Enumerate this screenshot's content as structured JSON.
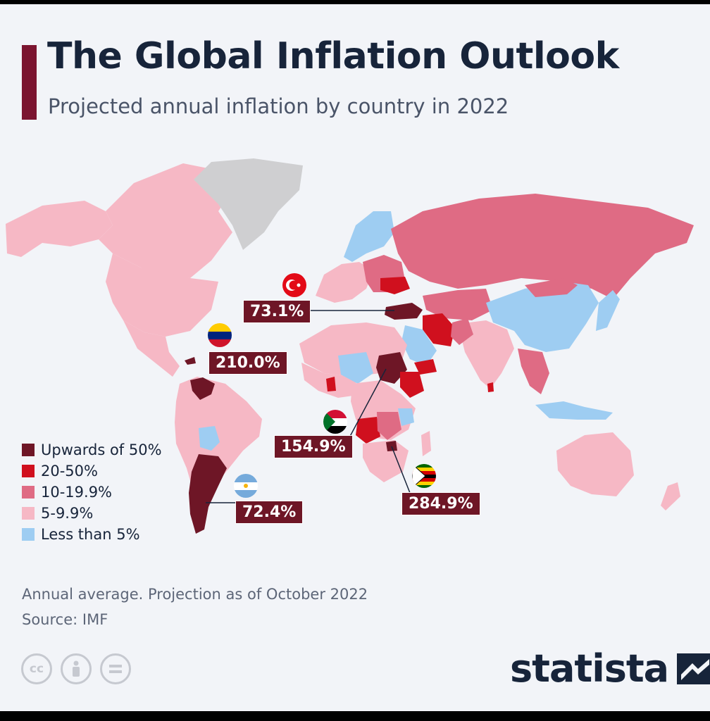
{
  "header": {
    "title": "The Global Inflation Outlook",
    "subtitle": "Projected annual inflation by country in 2022"
  },
  "legend": [
    {
      "label": "Upwards of 50%",
      "color": "#6e1626"
    },
    {
      "label": "20-50%",
      "color": "#d0101e"
    },
    {
      "label": "10-19.9%",
      "color": "#df6b84"
    },
    {
      "label": "5-9.9%",
      "color": "#f6b8c5"
    },
    {
      "label": "Less than 5%",
      "color": "#9ecdf2"
    }
  ],
  "callouts": {
    "turkey": {
      "value": "73.1%",
      "flag": "turkey-flag"
    },
    "venezuela": {
      "value": "210.0%",
      "flag": "venezuela-flag"
    },
    "sudan": {
      "value": "154.9%",
      "flag": "sudan-flag"
    },
    "argentina": {
      "value": "72.4%",
      "flag": "argentina-flag"
    },
    "zimbabwe": {
      "value": "284.9%",
      "flag": "zimbabwe-flag"
    }
  },
  "map": {
    "no_data_color": "#cfcfd1"
  },
  "footer": {
    "note": "Annual average. Projection as of October 2022",
    "source": "Source: IMF",
    "license_icons": [
      "cc-icon",
      "attribution-icon",
      "no-derivatives-icon"
    ],
    "brand": "statista"
  }
}
